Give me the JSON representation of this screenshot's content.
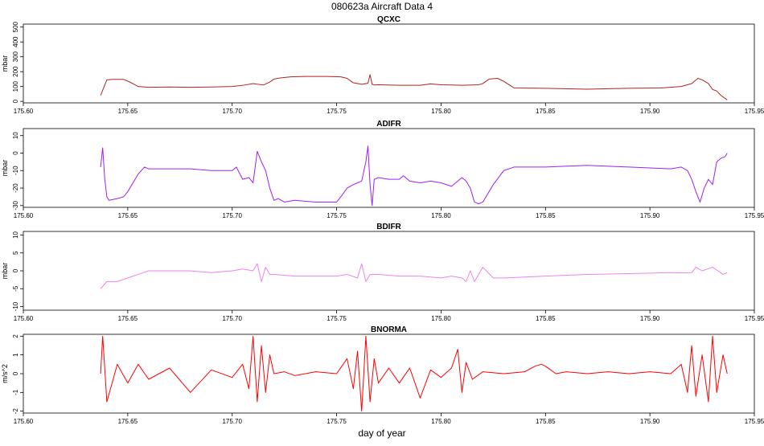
{
  "title": "080623a   Aircraft Data 4",
  "xlabel": "day of year",
  "chart_data": [
    {
      "type": "line",
      "title": "QCXC",
      "ylabel": "mbar",
      "color": "#b22222",
      "xlim": [
        175.6,
        175.95
      ],
      "ylim": [
        -10,
        520
      ],
      "x_ticks": [
        "175.60",
        "175.65",
        "175.70",
        "175.75",
        "175.80",
        "175.85",
        "175.90",
        "175.95"
      ],
      "y_ticks": [
        "0",
        "100",
        "200",
        "300",
        "400",
        "500"
      ],
      "series": [
        {
          "x": [
            175.637,
            175.64,
            175.643,
            175.645,
            175.648,
            175.651,
            175.655,
            175.66,
            175.67,
            175.68,
            175.69,
            175.7,
            175.706,
            175.71,
            175.715,
            175.718,
            175.72,
            175.723,
            175.728,
            175.735,
            175.745,
            175.752,
            175.755,
            175.758,
            175.762,
            175.765,
            175.766,
            175.767,
            175.768,
            175.77,
            175.78,
            175.79,
            175.795,
            175.8,
            175.805,
            175.81,
            175.815,
            175.818,
            175.82,
            175.823,
            175.827,
            175.83,
            175.835,
            175.85,
            175.87,
            175.89,
            175.905,
            175.915,
            175.92,
            175.923,
            175.925,
            175.928,
            175.93,
            175.932,
            175.934,
            175.936,
            175.937
          ],
          "y": [
            40,
            145,
            148,
            148,
            148,
            130,
            100,
            95,
            97,
            95,
            97,
            100,
            110,
            120,
            110,
            130,
            150,
            158,
            165,
            168,
            168,
            165,
            155,
            125,
            115,
            122,
            180,
            115,
            110,
            112,
            108,
            108,
            118,
            112,
            110,
            108,
            110,
            112,
            120,
            150,
            155,
            135,
            90,
            88,
            82,
            88,
            90,
            100,
            120,
            155,
            145,
            120,
            80,
            70,
            40,
            20,
            10
          ]
        }
      ]
    },
    {
      "type": "line",
      "title": "ADIFR",
      "ylabel": "mbar",
      "color": "#a020f0",
      "xlim": [
        175.6,
        175.95
      ],
      "ylim": [
        -31,
        14
      ],
      "x_ticks": [
        "175.60",
        "175.65",
        "175.70",
        "175.75",
        "175.80",
        "175.85",
        "175.90",
        "175.95"
      ],
      "y_ticks": [
        "-30",
        "-20",
        "-10",
        "0",
        "10"
      ],
      "series": [
        {
          "x": [
            175.637,
            175.638,
            175.639,
            175.64,
            175.641,
            175.645,
            175.648,
            175.65,
            175.652,
            175.655,
            175.658,
            175.66,
            175.67,
            175.68,
            175.69,
            175.7,
            175.702,
            175.705,
            175.708,
            175.71,
            175.712,
            175.714,
            175.716,
            175.718,
            175.72,
            175.722,
            175.725,
            175.73,
            175.74,
            175.75,
            175.752,
            175.755,
            175.758,
            175.76,
            175.762,
            175.764,
            175.765,
            175.766,
            175.767,
            175.768,
            175.77,
            175.775,
            175.78,
            175.782,
            175.785,
            175.79,
            175.795,
            175.8,
            175.805,
            175.81,
            175.812,
            175.814,
            175.816,
            175.818,
            175.82,
            175.825,
            175.83,
            175.835,
            175.85,
            175.87,
            175.89,
            175.91,
            175.915,
            175.918,
            175.92,
            175.922,
            175.924,
            175.926,
            175.928,
            175.93,
            175.932,
            175.934,
            175.936,
            175.937
          ],
          "y": [
            -8,
            3,
            -15,
            -25,
            -27,
            -26,
            -25,
            -22,
            -18,
            -12,
            -8,
            -9,
            -9,
            -9,
            -10,
            -10,
            -8,
            -15,
            -14,
            -17,
            1,
            -5,
            -10,
            -20,
            -27,
            -26,
            -28,
            -27,
            -28,
            -28,
            -25,
            -20,
            -18,
            -17,
            -16,
            -5,
            4,
            -18,
            -30,
            -15,
            -14,
            -15,
            -15,
            -13,
            -16,
            -17,
            -16,
            -17,
            -19,
            -14,
            -16,
            -20,
            -28,
            -29,
            -28,
            -18,
            -10,
            -8,
            -8,
            -7,
            -8,
            -9,
            -8,
            -10,
            -15,
            -22,
            -28,
            -20,
            -15,
            -18,
            -5,
            -3,
            -2,
            0
          ]
        }
      ]
    },
    {
      "type": "line",
      "title": "BDIFR",
      "ylabel": "mbar",
      "color": "#ee82ee",
      "xlim": [
        175.6,
        175.95
      ],
      "ylim": [
        -11,
        11
      ],
      "x_ticks": [
        "175.60",
        "175.65",
        "175.70",
        "175.75",
        "175.80",
        "175.85",
        "175.90",
        "175.95"
      ],
      "y_ticks": [
        "-10",
        "-5",
        "0",
        "5",
        "10"
      ],
      "series": [
        {
          "x": [
            175.637,
            175.64,
            175.645,
            175.65,
            175.655,
            175.66,
            175.67,
            175.68,
            175.69,
            175.7,
            175.705,
            175.71,
            175.712,
            175.714,
            175.716,
            175.718,
            175.72,
            175.73,
            175.74,
            175.75,
            175.755,
            175.76,
            175.762,
            175.764,
            175.766,
            175.77,
            175.78,
            175.79,
            175.8,
            175.805,
            175.81,
            175.812,
            175.814,
            175.816,
            175.818,
            175.82,
            175.825,
            175.83,
            175.85,
            175.87,
            175.89,
            175.91,
            175.915,
            175.92,
            175.922,
            175.925,
            175.93,
            175.935,
            175.937
          ],
          "y": [
            -5,
            -3,
            -3,
            -2,
            -1,
            0,
            0,
            0,
            -0.5,
            0,
            0.5,
            0,
            2,
            -3,
            1,
            -1,
            -1,
            -1.5,
            -1.5,
            -1.5,
            -1,
            -2,
            2,
            -3,
            -1,
            -1,
            -1.5,
            -1.5,
            -2,
            -1.5,
            -2,
            -3,
            0,
            -3,
            -1,
            1,
            -2,
            -2,
            -1.5,
            -1,
            -0.8,
            -0.5,
            -0.6,
            -0.5,
            1,
            0,
            1,
            -1,
            -0.5
          ]
        }
      ]
    },
    {
      "type": "line",
      "title": "BNORMA",
      "ylabel": "m/s^2",
      "color": "#ff0000",
      "xlim": [
        175.6,
        175.95
      ],
      "ylim": [
        -2.1,
        2.1
      ],
      "x_ticks": [
        "175.60",
        "175.65",
        "175.70",
        "175.75",
        "175.80",
        "175.85",
        "175.90",
        "175.95"
      ],
      "y_ticks": [
        "-2",
        "-1",
        "0",
        "1",
        "2"
      ],
      "series": [
        {
          "x": [
            175.637,
            175.638,
            175.64,
            175.645,
            175.65,
            175.655,
            175.66,
            175.67,
            175.68,
            175.69,
            175.7,
            175.705,
            175.708,
            175.71,
            175.712,
            175.714,
            175.716,
            175.718,
            175.72,
            175.725,
            175.73,
            175.74,
            175.75,
            175.755,
            175.758,
            175.76,
            175.762,
            175.764,
            175.766,
            175.768,
            175.77,
            175.775,
            175.78,
            175.785,
            175.79,
            175.795,
            175.8,
            175.805,
            175.808,
            175.81,
            175.812,
            175.815,
            175.82,
            175.83,
            175.84,
            175.845,
            175.848,
            175.85,
            175.855,
            175.86,
            175.87,
            175.88,
            175.89,
            175.9,
            175.91,
            175.915,
            175.918,
            175.92,
            175.922,
            175.925,
            175.928,
            175.93,
            175.932,
            175.935,
            175.937
          ],
          "y": [
            0,
            2,
            -1.5,
            0.5,
            -0.5,
            0.5,
            -0.3,
            0.3,
            -1,
            0.2,
            -0.2,
            0.5,
            -0.8,
            2,
            -1.5,
            1.5,
            -1,
            1,
            0,
            0.1,
            -0.1,
            0.1,
            0,
            0.8,
            -0.8,
            1.2,
            -2,
            2,
            -1.5,
            0.8,
            -0.5,
            0.3,
            -0.5,
            0.3,
            -1.3,
            0.2,
            -0.2,
            0.3,
            1.3,
            -1,
            0.6,
            -0.3,
            0.1,
            0,
            0.1,
            0.4,
            0.5,
            0.4,
            0,
            0.1,
            0,
            0.1,
            0,
            0.1,
            0,
            0.5,
            -1,
            1.5,
            -1.2,
            1,
            -1.5,
            2,
            -1,
            1,
            0
          ]
        }
      ]
    }
  ]
}
